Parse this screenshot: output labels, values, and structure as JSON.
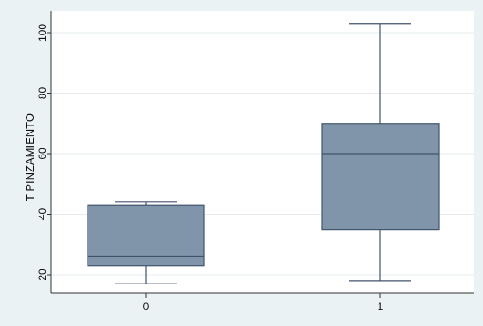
{
  "chart_data": {
    "type": "box",
    "categories": [
      "0",
      "1"
    ],
    "boxes": [
      {
        "category": "0",
        "whisker_low": 17,
        "q1": 23,
        "median": 26,
        "q3": 43,
        "whisker_high": 44
      },
      {
        "category": "1",
        "whisker_low": 18,
        "q1": 35,
        "median": 60,
        "q3": 70,
        "whisker_high": 103
      }
    ],
    "ylabel": "T PINZAMIENTO",
    "xlabel": "",
    "yticks": [
      20,
      40,
      60,
      80,
      100
    ],
    "ylim": [
      15,
      105
    ],
    "grid": true,
    "colors": {
      "box_fill": "#8094aa",
      "box_stroke": "#40546b",
      "background": "#eaf2f3",
      "plot_bg": "#ffffff",
      "grid": "#e6ecee",
      "axis": "#333333"
    }
  }
}
